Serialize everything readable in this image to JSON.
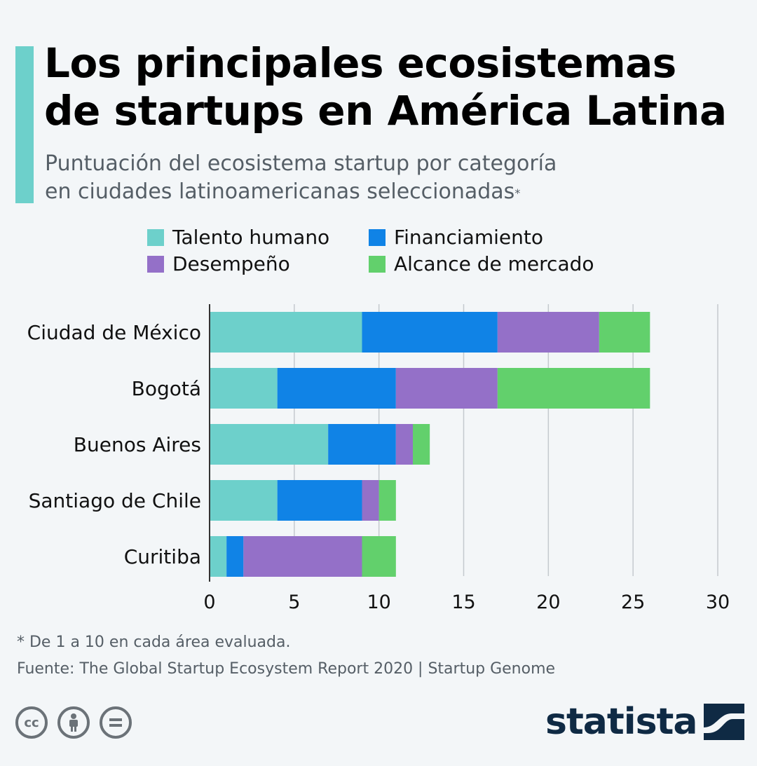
{
  "header": {
    "title_line1": "Los principales ecosistemas",
    "title_line2": "de startups en América Latina",
    "subtitle_line1": "Puntuación del ecosistema startup por categoría",
    "subtitle_line2": "en ciudades latinoamericanas seleccionadas",
    "subtitle_mark": "*"
  },
  "colors": {
    "accent": "#6dd0cb",
    "talento": "#6dd0cb",
    "financiamiento": "#1083e6",
    "desempeno": "#9470c8",
    "alcance": "#62d06c"
  },
  "chart_data": {
    "type": "bar",
    "orientation": "horizontal",
    "stacked": true,
    "categories": [
      "Ciudad de México",
      "Bogotá",
      "Buenos Aires",
      "Santiago de Chile",
      "Curitiba"
    ],
    "series": [
      {
        "name": "Talento humano",
        "values": [
          9,
          4,
          7,
          4,
          1
        ]
      },
      {
        "name": "Financiamiento",
        "values": [
          8,
          7,
          4,
          5,
          1
        ]
      },
      {
        "name": "Desempeño",
        "values": [
          6,
          6,
          1,
          1,
          7
        ]
      },
      {
        "name": "Alcance de mercado",
        "values": [
          3,
          9,
          1,
          1,
          2
        ]
      }
    ],
    "xlim": [
      0,
      30
    ],
    "xticks": [
      "0",
      "5",
      "10",
      "15",
      "20",
      "25",
      "30"
    ],
    "grid": "vertical",
    "legend_position": "top"
  },
  "footer": {
    "footnote": "* De 1 a 10 en cada área evaluada.",
    "source": "Fuente: The Global Startup Ecosystem Report 2020 | Startup Genome",
    "brand": "statista",
    "license_icons": [
      "cc-icon",
      "attribution-icon",
      "no-derivatives-icon"
    ]
  }
}
